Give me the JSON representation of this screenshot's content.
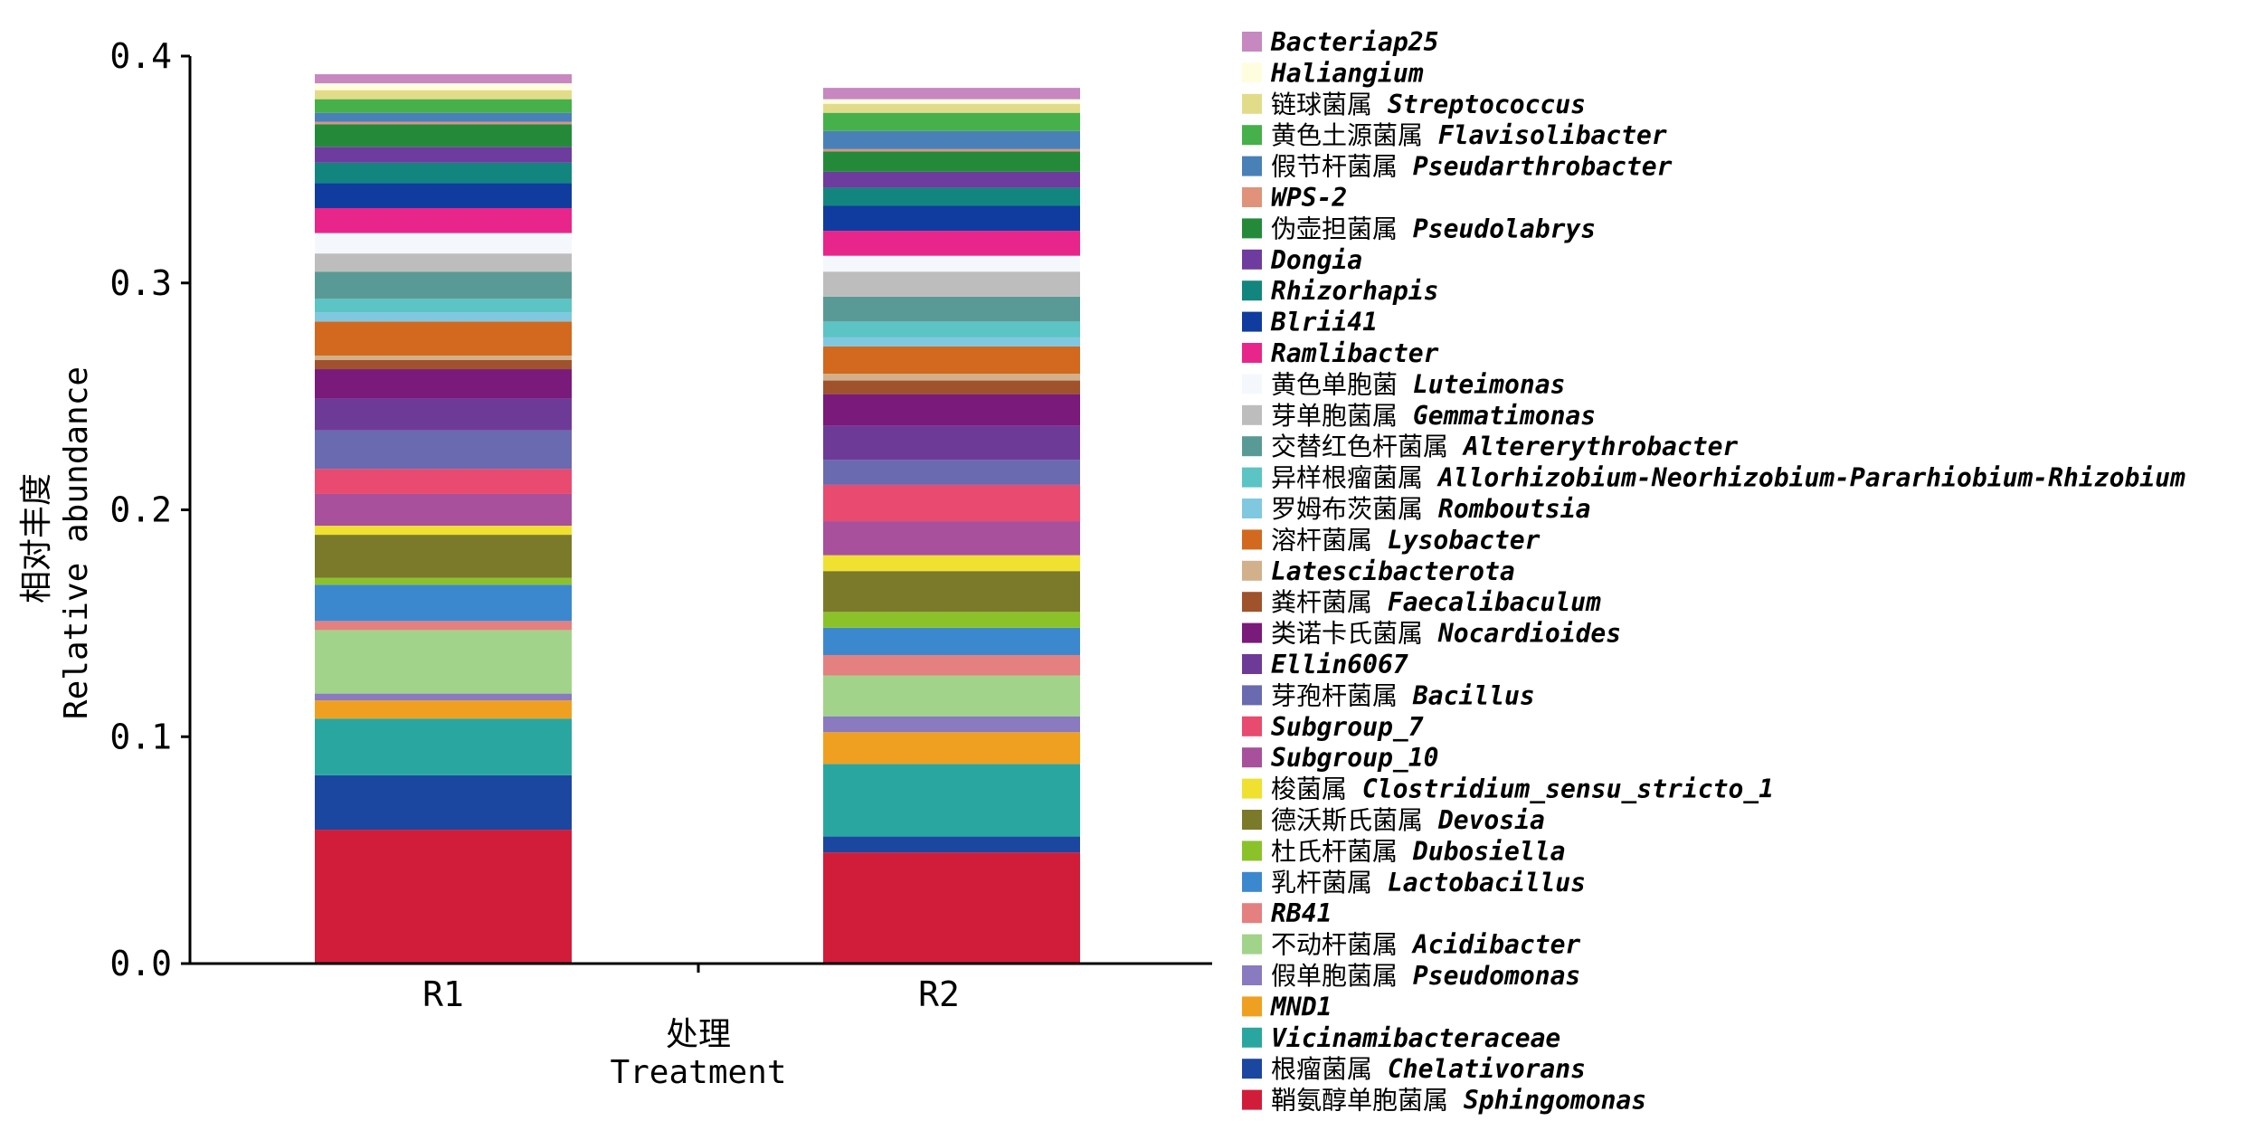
{
  "chart_data": {
    "type": "bar",
    "stacked": true,
    "categories": [
      "R1",
      "R2"
    ],
    "xlabel_cn": "处理",
    "xlabel": "Treatment",
    "ylabel_cn": "相对丰度",
    "ylabel": "Relative abundance",
    "ylim": [
      0,
      0.4
    ],
    "yticks": [
      "0.0",
      "0.1",
      "0.2",
      "0.3",
      "0.4"
    ],
    "legend_position": "right",
    "series": [
      {
        "name_cn": "鞘氨醇单胞菌属",
        "name": "Sphingomonas",
        "color": "#d21d3a",
        "values": [
          0.059,
          0.049
        ]
      },
      {
        "name_cn": "根瘤菌属",
        "name": "Chelativorans",
        "color": "#1c47a0",
        "values": [
          0.024,
          0.007
        ]
      },
      {
        "name_cn": "",
        "name": "Vicinamibacteraceae",
        "color": "#2aa6a0",
        "values": [
          0.025,
          0.032
        ]
      },
      {
        "name_cn": "",
        "name": "MND1",
        "color": "#f0a020",
        "values": [
          0.008,
          0.014
        ]
      },
      {
        "name_cn": "假单胞菌属",
        "name": "Pseudomonas",
        "color": "#8a7ac0",
        "values": [
          0.003,
          0.007
        ]
      },
      {
        "name_cn": "不动杆菌属",
        "name": "Acidibacter",
        "color": "#a2d38a",
        "values": [
          0.028,
          0.018
        ]
      },
      {
        "name_cn": "",
        "name": "RB41",
        "color": "#e58080",
        "values": [
          0.004,
          0.009
        ]
      },
      {
        "name_cn": "乳杆菌属",
        "name": "Lactobacillus",
        "color": "#3b88cf",
        "values": [
          0.016,
          0.012
        ]
      },
      {
        "name_cn": "杜氏杆菌属",
        "name": "Dubosiella",
        "color": "#8bc22a",
        "values": [
          0.003,
          0.007
        ]
      },
      {
        "name_cn": "德沃斯氏菌属",
        "name": "Devosia",
        "color": "#7a7a2a",
        "values": [
          0.019,
          0.018
        ]
      },
      {
        "name_cn": "梭菌属",
        "name": "Clostridium_sensu_stricto_1",
        "color": "#f0e030",
        "values": [
          0.004,
          0.007
        ]
      },
      {
        "name_cn": "",
        "name": "Subgroup_10",
        "color": "#a8509c",
        "values": [
          0.014,
          0.015
        ]
      },
      {
        "name_cn": "",
        "name": "Subgroup_7",
        "color": "#e84a70",
        "values": [
          0.011,
          0.016
        ]
      },
      {
        "name_cn": "芽孢杆菌属",
        "name": "Bacillus",
        "color": "#6a6ab0",
        "values": [
          0.017,
          0.011
        ]
      },
      {
        "name_cn": "",
        "name": "Ellin6067",
        "color": "#6e3a98",
        "values": [
          0.014,
          0.015
        ]
      },
      {
        "name_cn": "类诺卡氏菌属",
        "name": "Nocardioides",
        "color": "#7a1a7a",
        "values": [
          0.013,
          0.014
        ]
      },
      {
        "name_cn": "粪杆菌属",
        "name": "Faecalibaculum",
        "color": "#a0522d",
        "values": [
          0.004,
          0.006
        ]
      },
      {
        "name_cn": "",
        "name": "Latescibacterota",
        "color": "#d2b08c",
        "values": [
          0.002,
          0.003
        ]
      },
      {
        "name_cn": "溶杆菌属",
        "name": "Lysobacter",
        "color": "#d2691e",
        "values": [
          0.015,
          0.012
        ]
      },
      {
        "name_cn": "罗姆布茨菌属",
        "name": "Romboutsia",
        "color": "#80c8e0",
        "values": [
          0.004,
          0.004
        ]
      },
      {
        "name_cn": "异样根瘤菌属",
        "name": "Allorhizobium-Neorhizobium-Pararhiobium-Rhizobium",
        "color": "#5cc4c4",
        "values": [
          0.006,
          0.007
        ]
      },
      {
        "name_cn": "交替红色杆菌属",
        "name": "Altererythrobacter",
        "color": "#5a9a96",
        "values": [
          0.012,
          0.011
        ]
      },
      {
        "name_cn": "芽单胞菌属",
        "name": "Gemmatimonas",
        "color": "#bdbdbd",
        "values": [
          0.008,
          0.011
        ]
      },
      {
        "name_cn": "黄色单胞菌",
        "name": "Luteimonas",
        "color": "#f4f8fc",
        "values": [
          0.009,
          0.007
        ]
      },
      {
        "name_cn": "",
        "name": "Ramlibacter",
        "color": "#e8258a",
        "values": [
          0.011,
          0.011
        ]
      },
      {
        "name_cn": "",
        "name": "Blrii41",
        "color": "#0f3c9e",
        "values": [
          0.011,
          0.011
        ]
      },
      {
        "name_cn": "",
        "name": "Rhizorhapis",
        "color": "#13857f",
        "values": [
          0.009,
          0.008
        ]
      },
      {
        "name_cn": "",
        "name": "Dongia",
        "color": "#6e3c9e",
        "values": [
          0.007,
          0.007
        ]
      },
      {
        "name_cn": "伪壶担菌属",
        "name": "Pseudolabrys",
        "color": "#248a3a",
        "values": [
          0.01,
          0.009
        ]
      },
      {
        "name_cn": "",
        "name": "WPS-2",
        "color": "#e0937a",
        "values": [
          0.001,
          0.001
        ]
      },
      {
        "name_cn": "假节杆菌属",
        "name": "Pseudarthrobacter",
        "color": "#4a80b8",
        "values": [
          0.004,
          0.008
        ]
      },
      {
        "name_cn": "黄色土源菌属",
        "name": "Flavisolibacter",
        "color": "#46b04a",
        "values": [
          0.006,
          0.008
        ]
      },
      {
        "name_cn": "链球菌属",
        "name": "Streptococcus",
        "color": "#e2dc8a",
        "values": [
          0.004,
          0.004
        ]
      },
      {
        "name_cn": "",
        "name": "Haliangium",
        "color": "#fffde0",
        "values": [
          0.003,
          0.002
        ]
      },
      {
        "name_cn": "",
        "name": "Bacteriap25",
        "color": "#c787c0",
        "values": [
          0.004,
          0.005
        ]
      }
    ]
  }
}
